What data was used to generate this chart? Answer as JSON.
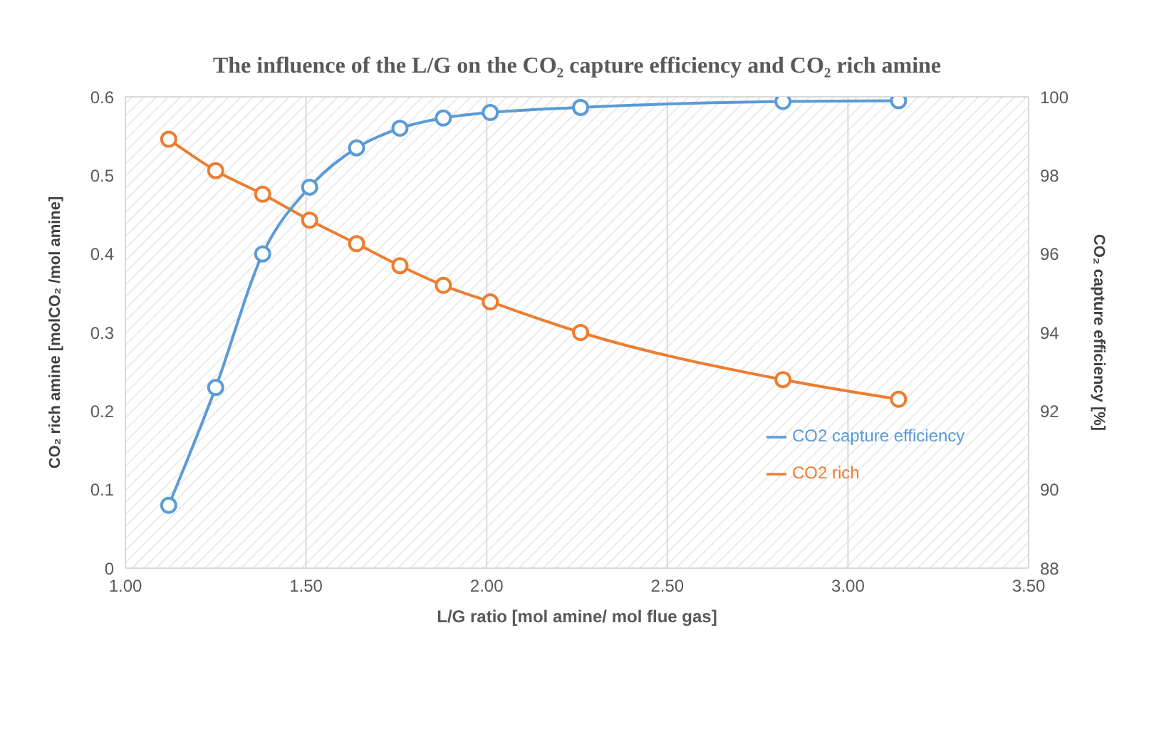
{
  "chart_data": {
    "type": "line",
    "title": "The influence of the L/G on the CO₂ capture efficiency and CO₂ rich amine",
    "xlabel": "L/G ratio [mol amine/ mol flue gas]",
    "ylabel": "CO₂ rich amine [molCO₂ /mol amine]",
    "y2label": "CO₂ capture efficiency [%]",
    "x": [
      1.12,
      1.25,
      1.38,
      1.51,
      1.64,
      1.76,
      1.88,
      2.01,
      2.26,
      2.82,
      3.14
    ],
    "series": [
      {
        "name": "CO2 rich",
        "color": "#ed7d31",
        "values": [
          0.546,
          0.506,
          0.476,
          0.443,
          0.413,
          0.385,
          0.36,
          0.339,
          0.3,
          0.24,
          0.215
        ]
      },
      {
        "name": "CO2 capture efficiency",
        "color": "#5b9bd5",
        "axis": "y2",
        "values": [
          89.6,
          92.6,
          96.0,
          97.7,
          98.7,
          99.2,
          99.46,
          99.6,
          99.73,
          99.88,
          99.9
        ]
      }
    ],
    "xlim": [
      1,
      3.5
    ],
    "xticks": [
      {
        "value": 1,
        "label": "1.00"
      },
      {
        "value": 1.5,
        "label": "1.50"
      },
      {
        "value": 2,
        "label": "2.00"
      },
      {
        "value": 2.5,
        "label": "2.50"
      },
      {
        "value": 3,
        "label": "3.00"
      },
      {
        "value": 3.5,
        "label": "3.50"
      }
    ],
    "ylim": [
      0,
      0.6
    ],
    "yticks": [
      0,
      0.1,
      0.2,
      0.3,
      0.4,
      0.5,
      0.6
    ],
    "y2lim": [
      88,
      100
    ],
    "y2ticks": [
      88,
      90,
      92,
      94,
      96,
      98,
      100
    ],
    "grid": true,
    "legend": "right",
    "marker": "circle",
    "line_style": "solid"
  }
}
